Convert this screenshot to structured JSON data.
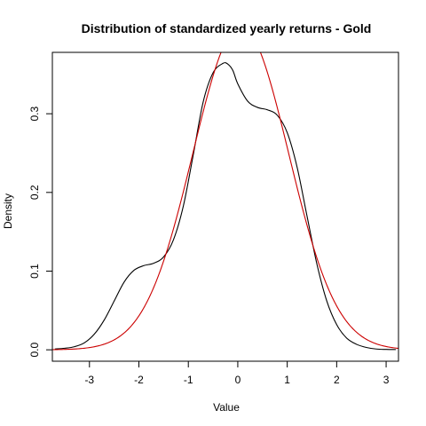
{
  "chart_data": {
    "type": "line",
    "title": "Distribution of standardized yearly returns - Gold",
    "xlabel": "Value",
    "ylabel": "Density",
    "xlim": [
      -3.75,
      3.25
    ],
    "ylim": [
      -0.0145,
      0.378
    ],
    "x_ticks": [
      -3,
      -2,
      -1,
      0,
      1,
      2,
      3
    ],
    "y_ticks": [
      0.0,
      0.1,
      0.2,
      0.3
    ],
    "x_tick_labels": [
      "-3",
      "-2",
      "-1",
      "0",
      "1",
      "2",
      "3"
    ],
    "y_tick_labels": [
      "0.0",
      "0.1",
      "0.2",
      "0.3"
    ],
    "grid": false,
    "legend": "none",
    "series": [
      {
        "color": "#000000",
        "x": [
          -3.7,
          -3.5,
          -3.3,
          -3.1,
          -2.9,
          -2.7,
          -2.5,
          -2.3,
          -2.1,
          -1.9,
          -1.7,
          -1.5,
          -1.3,
          -1.1,
          -0.9,
          -0.7,
          -0.5,
          -0.3,
          -0.2,
          -0.1,
          0.0,
          0.2,
          0.4,
          0.6,
          0.8,
          1.0,
          1.2,
          1.4,
          1.6,
          1.8,
          2.0,
          2.2,
          2.4,
          2.6,
          2.8,
          3.0,
          3.2
        ],
        "y": [
          0.001,
          0.002,
          0.004,
          0.009,
          0.02,
          0.038,
          0.062,
          0.086,
          0.101,
          0.107,
          0.11,
          0.118,
          0.14,
          0.183,
          0.248,
          0.315,
          0.352,
          0.364,
          0.363,
          0.355,
          0.338,
          0.316,
          0.308,
          0.305,
          0.298,
          0.276,
          0.232,
          0.17,
          0.109,
          0.062,
          0.032,
          0.015,
          0.007,
          0.003,
          0.001,
          0.0005,
          0.0003
        ]
      },
      {
        "color": "#cc0000",
        "distribution": "normal",
        "mean": 0.06,
        "sd": 0.97
      }
    ]
  }
}
